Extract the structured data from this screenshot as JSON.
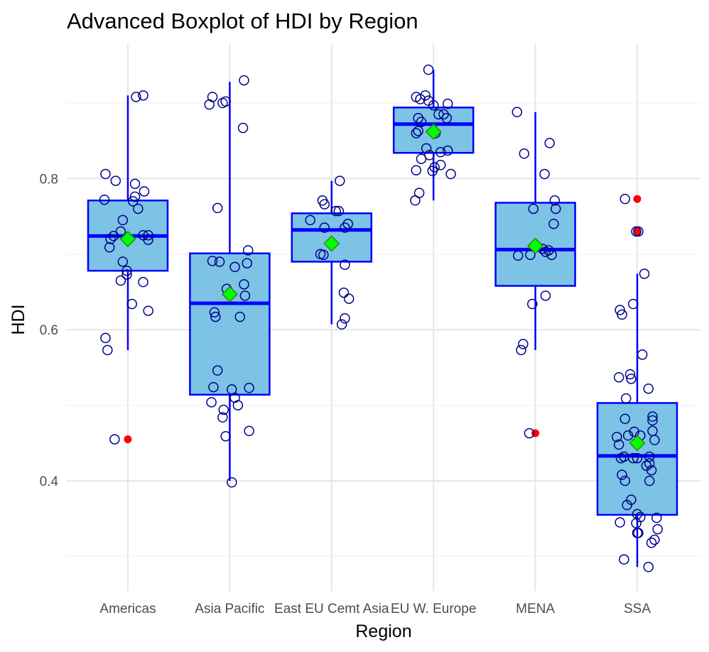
{
  "chart_data": {
    "type": "boxplot",
    "title": "Advanced Boxplot of HDI by Region",
    "xlabel": "Region",
    "ylabel": "HDI",
    "ylim": [
      0.255,
      0.96
    ],
    "yticks": [
      0.4,
      0.6,
      0.8
    ],
    "grid": true,
    "legend": "none",
    "colors": {
      "box_fill": "#7cc3e6",
      "box_line": "#0000ff",
      "point_stroke": "#00008b",
      "outlier": "#ff0000",
      "mean_fill": "#00ff00",
      "mean_stroke": "#2e8b00",
      "grid_major": "#e6e6e6",
      "grid_minor": "#f2f2f2"
    },
    "categories": [
      "Americas",
      "Asia Pacific",
      "East EU Cemt Asia",
      "EU W. Europe",
      "MENA",
      "SSA"
    ],
    "boxes": [
      {
        "category": "Americas",
        "whisker_low": 0.573,
        "q1": 0.678,
        "median": 0.724,
        "q3": 0.771,
        "whisker_high": 0.91,
        "mean": 0.72,
        "outliers": [
          0.455
        ]
      },
      {
        "category": "Asia Pacific",
        "whisker_low": 0.4,
        "q1": 0.514,
        "median": 0.635,
        "q3": 0.701,
        "whisker_high": 0.928,
        "mean": 0.647,
        "outliers": []
      },
      {
        "category": "East EU Cemt Asia",
        "whisker_low": 0.607,
        "q1": 0.69,
        "median": 0.732,
        "q3": 0.754,
        "whisker_high": 0.797,
        "mean": 0.714,
        "outliers": []
      },
      {
        "category": "EU W. Europe",
        "whisker_low": 0.771,
        "q1": 0.834,
        "median": 0.872,
        "q3": 0.894,
        "whisker_high": 0.944,
        "mean": 0.862,
        "outliers": []
      },
      {
        "category": "MENA",
        "whisker_low": 0.573,
        "q1": 0.658,
        "median": 0.706,
        "q3": 0.768,
        "whisker_high": 0.888,
        "mean": 0.711,
        "outliers": [
          0.463
        ]
      },
      {
        "category": "SSA",
        "whisker_low": 0.286,
        "q1": 0.355,
        "median": 0.433,
        "q3": 0.503,
        "whisker_high": 0.674,
        "mean": 0.45,
        "outliers": [
          0.773,
          0.73
        ]
      }
    ],
    "jitter_points": [
      {
        "category": "Americas",
        "points": [
          [
            -0.22,
            0.806
          ],
          [
            -0.12,
            0.797
          ],
          [
            -0.23,
            0.772
          ],
          [
            0.07,
            0.793
          ],
          [
            0.07,
            0.776
          ],
          [
            0.16,
            0.783
          ],
          [
            0.05,
            0.77
          ],
          [
            0.1,
            0.76
          ],
          [
            -0.05,
            0.745
          ],
          [
            -0.14,
            0.724
          ],
          [
            -0.17,
            0.72
          ],
          [
            -0.07,
            0.73
          ],
          [
            0.15,
            0.725
          ],
          [
            0.2,
            0.725
          ],
          [
            0.2,
            0.719
          ],
          [
            -0.18,
            0.709
          ],
          [
            -0.05,
            0.69
          ],
          [
            -0.01,
            0.678
          ],
          [
            -0.01,
            0.673
          ],
          [
            -0.07,
            0.665
          ],
          [
            0.15,
            0.663
          ],
          [
            0.04,
            0.634
          ],
          [
            0.2,
            0.625
          ],
          [
            -0.22,
            0.589
          ],
          [
            -0.2,
            0.573
          ],
          [
            -0.13,
            0.455
          ],
          [
            0.08,
            0.908
          ],
          [
            0.15,
            0.91
          ]
        ]
      },
      {
        "category": "Asia Pacific",
        "points": [
          [
            0.14,
            0.93
          ],
          [
            -0.17,
            0.908
          ],
          [
            -0.2,
            0.898
          ],
          [
            -0.07,
            0.9
          ],
          [
            -0.04,
            0.902
          ],
          [
            0.13,
            0.867
          ],
          [
            -0.12,
            0.761
          ],
          [
            0.18,
            0.705
          ],
          [
            -0.17,
            0.691
          ],
          [
            -0.1,
            0.69
          ],
          [
            0.05,
            0.683
          ],
          [
            0.17,
            0.688
          ],
          [
            0.14,
            0.66
          ],
          [
            -0.03,
            0.654
          ],
          [
            0.15,
            0.645
          ],
          [
            -0.15,
            0.623
          ],
          [
            -0.14,
            0.617
          ],
          [
            0.1,
            0.617
          ],
          [
            -0.12,
            0.546
          ],
          [
            -0.16,
            0.524
          ],
          [
            0.02,
            0.521
          ],
          [
            0.19,
            0.523
          ],
          [
            0.05,
            0.51
          ],
          [
            0.08,
            0.5
          ],
          [
            -0.18,
            0.504
          ],
          [
            -0.06,
            0.494
          ],
          [
            -0.07,
            0.484
          ],
          [
            0.19,
            0.466
          ],
          [
            -0.04,
            0.459
          ],
          [
            0.02,
            0.398
          ]
        ]
      },
      {
        "category": "East EU Cemt Asia",
        "points": [
          [
            0.08,
            0.797
          ],
          [
            -0.09,
            0.771
          ],
          [
            -0.07,
            0.766
          ],
          [
            0.04,
            0.757
          ],
          [
            0.07,
            0.757
          ],
          [
            -0.21,
            0.745
          ],
          [
            0.16,
            0.74
          ],
          [
            0.13,
            0.735
          ],
          [
            -0.07,
            0.735
          ],
          [
            -0.11,
            0.7
          ],
          [
            -0.08,
            0.699
          ],
          [
            0.13,
            0.686
          ],
          [
            0.12,
            0.649
          ],
          [
            0.17,
            0.641
          ],
          [
            0.13,
            0.615
          ],
          [
            0.1,
            0.607
          ]
        ]
      },
      {
        "category": "EU W. Europe",
        "points": [
          [
            -0.05,
            0.944
          ],
          [
            -0.17,
            0.908
          ],
          [
            -0.13,
            0.905
          ],
          [
            -0.08,
            0.91
          ],
          [
            -0.05,
            0.903
          ],
          [
            0.0,
            0.897
          ],
          [
            0.14,
            0.899
          ],
          [
            -0.15,
            0.88
          ],
          [
            -0.12,
            0.875
          ],
          [
            0.05,
            0.885
          ],
          [
            0.1,
            0.885
          ],
          [
            0.13,
            0.88
          ],
          [
            -0.15,
            0.863
          ],
          [
            -0.17,
            0.86
          ],
          [
            0.02,
            0.86
          ],
          [
            -0.07,
            0.84
          ],
          [
            -0.04,
            0.831
          ],
          [
            -0.12,
            0.826
          ],
          [
            0.07,
            0.835
          ],
          [
            0.14,
            0.837
          ],
          [
            0.07,
            0.818
          ],
          [
            -0.17,
            0.811
          ],
          [
            -0.01,
            0.81
          ],
          [
            0.17,
            0.806
          ],
          [
            0.01,
            0.815
          ],
          [
            -0.14,
            0.781
          ],
          [
            -0.18,
            0.771
          ]
        ]
      },
      {
        "category": "MENA",
        "points": [
          [
            -0.18,
            0.888
          ],
          [
            -0.11,
            0.833
          ],
          [
            0.14,
            0.847
          ],
          [
            0.09,
            0.806
          ],
          [
            0.19,
            0.771
          ],
          [
            0.2,
            0.76
          ],
          [
            -0.02,
            0.76
          ],
          [
            0.18,
            0.74
          ],
          [
            0.07,
            0.707
          ],
          [
            0.13,
            0.705
          ],
          [
            -0.17,
            0.698
          ],
          [
            -0.05,
            0.699
          ],
          [
            0.16,
            0.699
          ],
          [
            0.1,
            0.703
          ],
          [
            0.1,
            0.645
          ],
          [
            -0.03,
            0.634
          ],
          [
            -0.12,
            0.581
          ],
          [
            -0.14,
            0.573
          ],
          [
            -0.06,
            0.463
          ]
        ]
      },
      {
        "category": "SSA",
        "points": [
          [
            -0.12,
            0.773
          ],
          [
            -0.01,
            0.73
          ],
          [
            0.01,
            0.73
          ],
          [
            0.07,
            0.674
          ],
          [
            -0.17,
            0.626
          ],
          [
            -0.15,
            0.62
          ],
          [
            -0.04,
            0.634
          ],
          [
            0.05,
            0.567
          ],
          [
            -0.18,
            0.537
          ],
          [
            -0.07,
            0.541
          ],
          [
            -0.06,
            0.535
          ],
          [
            0.11,
            0.522
          ],
          [
            -0.11,
            0.509
          ],
          [
            0.15,
            0.485
          ],
          [
            0.15,
            0.48
          ],
          [
            -0.12,
            0.482
          ],
          [
            -0.09,
            0.46
          ],
          [
            -0.03,
            0.465
          ],
          [
            0.03,
            0.46
          ],
          [
            -0.2,
            0.458
          ],
          [
            -0.18,
            0.448
          ],
          [
            0.15,
            0.466
          ],
          [
            0.17,
            0.454
          ],
          [
            -0.13,
            0.432
          ],
          [
            -0.16,
            0.43
          ],
          [
            0.0,
            0.43
          ],
          [
            0.12,
            0.432
          ],
          [
            -0.04,
            0.43
          ],
          [
            0.12,
            0.423
          ],
          [
            0.14,
            0.414
          ],
          [
            0.09,
            0.42
          ],
          [
            -0.15,
            0.408
          ],
          [
            0.12,
            0.4
          ],
          [
            -0.12,
            0.4
          ],
          [
            -0.06,
            0.375
          ],
          [
            -0.1,
            0.368
          ],
          [
            0.0,
            0.356
          ],
          [
            0.03,
            0.352
          ],
          [
            0.19,
            0.351
          ],
          [
            -0.17,
            0.345
          ],
          [
            -0.01,
            0.344
          ],
          [
            0.0,
            0.331
          ],
          [
            0.01,
            0.331
          ],
          [
            0.2,
            0.336
          ],
          [
            0.14,
            0.318
          ],
          [
            0.17,
            0.322
          ],
          [
            -0.13,
            0.296
          ],
          [
            0.11,
            0.286
          ]
        ]
      }
    ]
  }
}
